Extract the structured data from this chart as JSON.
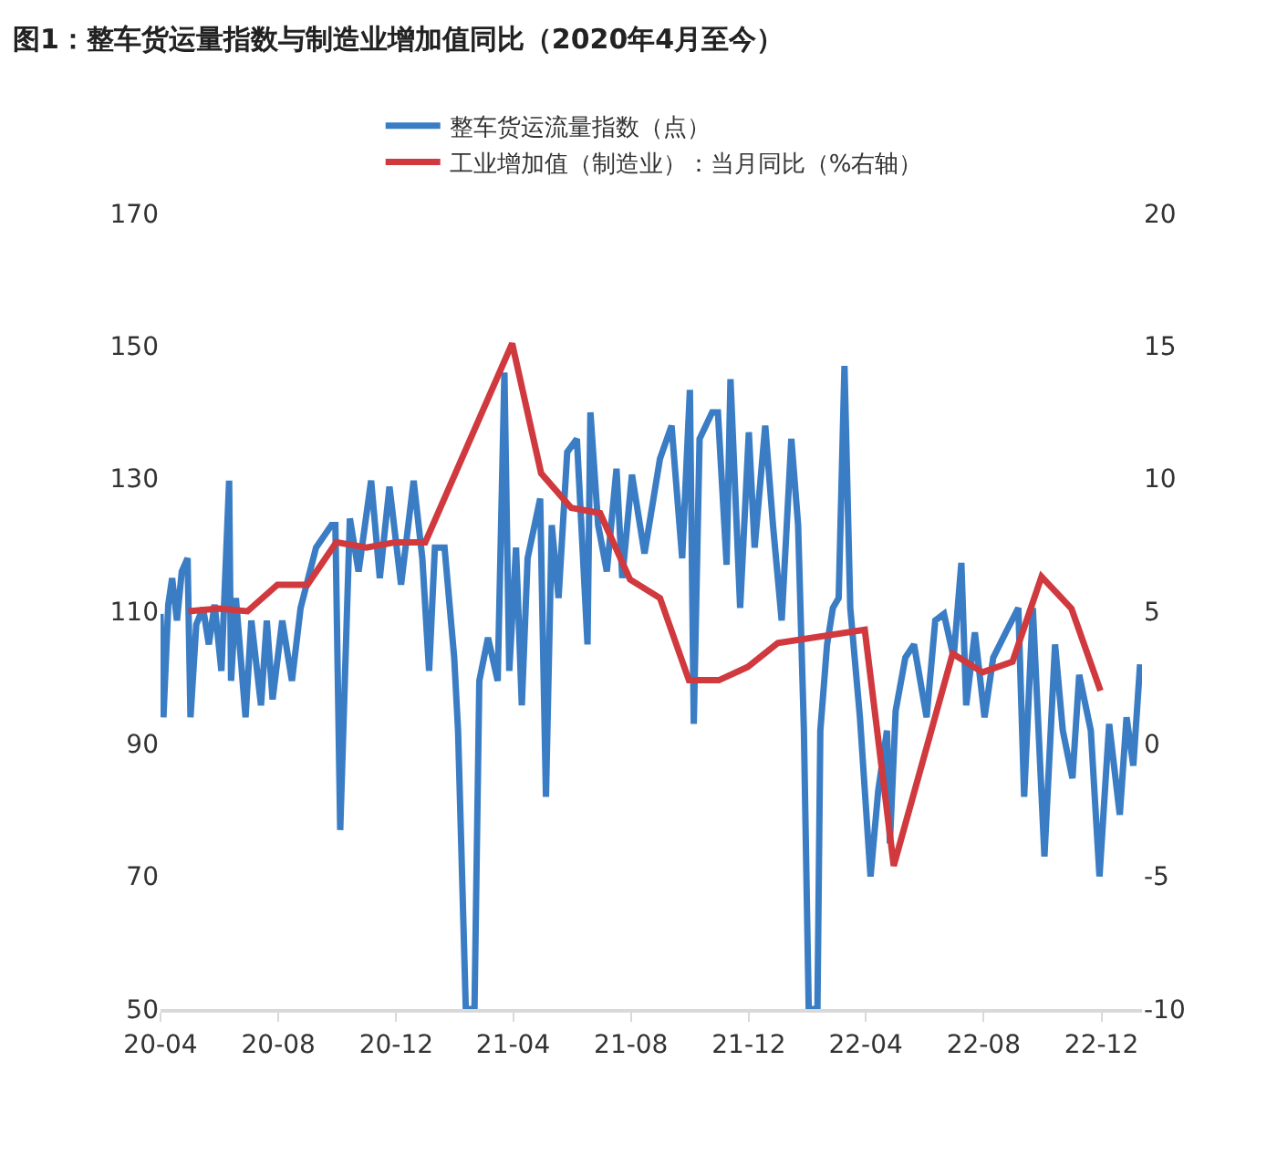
{
  "chart_data": {
    "type": "line",
    "title": "图1：整车货运量指数与制造业增加值同比（2020年4月至今）",
    "series": [
      {
        "name": "整车货运流量指数（点）",
        "color": "#3a7dc4",
        "x": [
          "2020-04-01",
          "2020-04-04",
          "2020-04-09",
          "2020-04-13",
          "2020-04-18",
          "2020-04-23",
          "2020-04-29",
          "2020-05-02",
          "2020-05-08",
          "2020-05-15",
          "2020-05-21",
          "2020-05-27",
          "2020-06-03",
          "2020-06-11",
          "2020-06-13",
          "2020-06-18",
          "2020-06-28",
          "2020-07-04",
          "2020-07-14",
          "2020-07-20",
          "2020-07-26",
          "2020-08-05",
          "2020-08-15",
          "2020-08-24",
          "2020-09-09",
          "2020-09-25",
          "2020-09-29",
          "2020-10-04",
          "2020-10-14",
          "2020-10-23",
          "2020-11-05",
          "2020-11-14",
          "2020-11-24",
          "2020-12-06",
          "2020-12-19",
          "2020-12-28",
          "2021-01-04",
          "2021-01-10",
          "2021-01-20",
          "2021-01-30",
          "2021-02-03",
          "2021-02-11",
          "2021-02-20",
          "2021-02-25",
          "2021-03-06",
          "2021-03-16",
          "2021-03-23",
          "2021-03-28",
          "2021-04-04",
          "2021-04-10",
          "2021-04-16",
          "2021-04-29",
          "2021-05-05",
          "2021-05-11",
          "2021-05-18",
          "2021-05-27",
          "2021-06-06",
          "2021-06-17",
          "2021-06-20",
          "2021-06-28",
          "2021-07-07",
          "2021-07-17",
          "2021-07-23",
          "2021-08-02",
          "2021-08-15",
          "2021-08-31",
          "2021-09-12",
          "2021-09-23",
          "2021-10-01",
          "2021-10-05",
          "2021-10-11",
          "2021-10-24",
          "2021-10-30",
          "2021-11-08",
          "2021-11-12",
          "2021-11-22",
          "2021-12-01",
          "2021-12-07",
          "2021-12-18",
          "2021-12-26",
          "2022-01-04",
          "2022-01-14",
          "2022-01-21",
          "2022-01-27",
          "2022-02-01",
          "2022-02-10",
          "2022-02-13",
          "2022-02-20",
          "2022-02-26",
          "2022-03-04",
          "2022-03-10",
          "2022-03-16",
          "2022-03-26",
          "2022-04-06",
          "2022-04-14",
          "2022-04-23",
          "2022-04-26",
          "2022-05-02",
          "2022-05-12",
          "2022-05-21",
          "2022-06-03",
          "2022-06-12",
          "2022-06-21",
          "2022-07-01",
          "2022-07-09",
          "2022-07-14",
          "2022-07-23",
          "2022-08-02",
          "2022-08-11",
          "2022-08-24",
          "2022-09-06",
          "2022-09-12",
          "2022-09-21",
          "2022-10-03",
          "2022-10-14",
          "2022-10-22",
          "2022-11-01",
          "2022-11-08",
          "2022-11-20",
          "2022-11-29",
          "2022-12-09",
          "2022-12-20",
          "2022-12-27",
          "2023-01-03",
          "2023-01-10"
        ],
        "values": [
          109.6,
          94,
          111,
          115,
          108.6,
          116,
          118,
          94,
          108,
          110.5,
          105,
          111,
          101,
          129.7,
          99.5,
          112,
          94,
          108.6,
          95.8,
          108.6,
          96.7,
          108.6,
          99.5,
          110.5,
          119.6,
          123,
          123,
          77,
          124,
          116,
          129.7,
          115,
          128.8,
          114,
          129.7,
          118,
          101,
          119.6,
          119.6,
          103,
          92,
          50,
          50,
          99.5,
          106,
          99.5,
          146,
          101,
          119.6,
          95.8,
          118,
          127,
          82,
          123,
          112,
          134,
          136,
          105,
          140,
          123,
          116,
          131.5,
          115,
          130.6,
          118.7,
          133,
          138,
          118,
          143.4,
          93,
          136,
          140,
          140,
          117,
          145,
          110.5,
          137,
          119.6,
          138,
          123,
          108.6,
          136,
          123,
          92,
          50,
          50,
          92,
          105,
          110.5,
          112,
          147,
          110.5,
          94,
          70,
          83,
          92,
          75,
          95,
          103,
          105,
          94,
          108.6,
          109.6,
          103,
          117.3,
          95.8,
          106.8,
          94,
          103,
          106.8,
          110.5,
          82,
          110.5,
          73,
          105,
          92,
          84.8,
          100.4,
          92,
          70,
          93,
          79.3,
          94,
          86.7,
          102
        ]
      },
      {
        "name": "工业增加值（制造业）：当月同比（%右轴）",
        "color": "#d0393e",
        "axis": "y2",
        "x": [
          "2020-04-30",
          "2020-05-31",
          "2020-06-30",
          "2020-07-31",
          "2020-08-31",
          "2020-09-30",
          "2020-10-31",
          "2020-11-30",
          "2020-12-31",
          "2021-03-31",
          "2021-04-30",
          "2021-05-31",
          "2021-06-30",
          "2021-07-31",
          "2021-08-31",
          "2021-09-30",
          "2021-10-31",
          "2021-11-30",
          "2021-12-31",
          "2022-03-31",
          "2022-04-30",
          "2022-06-30",
          "2022-07-31",
          "2022-08-31",
          "2022-09-30",
          "2022-10-31",
          "2022-11-30"
        ],
        "values": [
          5.0,
          5.1,
          5.0,
          6.0,
          6.0,
          7.6,
          7.4,
          7.6,
          7.6,
          15.1,
          10.2,
          8.9,
          8.7,
          6.2,
          5.5,
          2.4,
          2.4,
          2.9,
          3.8,
          4.3,
          -4.6,
          3.4,
          2.7,
          3.1,
          6.3,
          5.1,
          2.0
        ]
      }
    ],
    "xlim": [
      "2020-04-01",
      "2023-01-12"
    ],
    "xticks": [
      {
        "value": "2020-04-01",
        "label": "20-04"
      },
      {
        "value": "2020-08-01",
        "label": "20-08"
      },
      {
        "value": "2020-12-01",
        "label": "20-12"
      },
      {
        "value": "2021-04-01",
        "label": "21-04"
      },
      {
        "value": "2021-08-01",
        "label": "21-08"
      },
      {
        "value": "2021-12-01",
        "label": "21-12"
      },
      {
        "value": "2022-04-01",
        "label": "22-04"
      },
      {
        "value": "2022-08-01",
        "label": "22-08"
      },
      {
        "value": "2022-12-01",
        "label": "22-12"
      }
    ],
    "ylim": [
      50,
      170
    ],
    "yticks": [
      50,
      70,
      90,
      110,
      130,
      150,
      170
    ],
    "y2lim": [
      -10,
      20
    ],
    "y2ticks": [
      -10,
      -5,
      0,
      5,
      10,
      15,
      20
    ],
    "legend": "top",
    "marker": "none",
    "line_style": "solid"
  }
}
